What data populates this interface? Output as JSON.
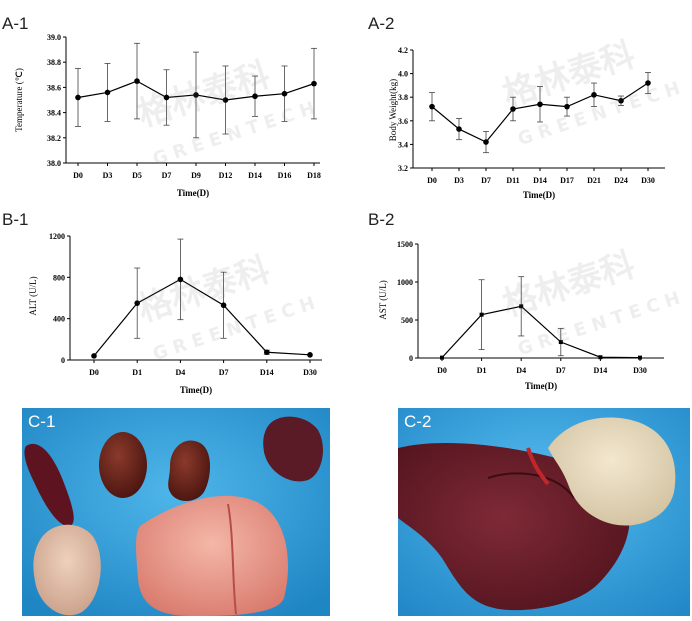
{
  "panels": {
    "a1": "A-1",
    "a2": "A-2",
    "b1": "B-1",
    "b2": "B-2",
    "c1": "C-1",
    "c2": "C-2"
  },
  "watermark": {
    "cn": "格林泰科",
    "en": "GREENTECH"
  },
  "colors": {
    "line": "#000000",
    "photo_bg": "#2e9fd9",
    "liver": "#6a1f2a"
  },
  "chart_data": [
    {
      "id": "A-1",
      "type": "line",
      "x": [
        "D0",
        "D3",
        "D5",
        "D7",
        "D9",
        "D12",
        "D14",
        "D16",
        "D18"
      ],
      "values": [
        38.52,
        38.56,
        38.65,
        38.52,
        38.54,
        38.5,
        38.53,
        38.55,
        38.63
      ],
      "error": [
        0.23,
        0.23,
        0.3,
        0.22,
        0.34,
        0.27,
        0.16,
        0.22,
        0.28
      ],
      "xlabel": "Time(D)",
      "ylabel": "Temperature (℃)",
      "ylim": [
        38.0,
        39.0
      ],
      "yticks": [
        "38.0",
        "38.2",
        "38.4",
        "38.6",
        "38.8",
        "39.0"
      ]
    },
    {
      "id": "A-2",
      "type": "line",
      "x": [
        "D0",
        "D3",
        "D7",
        "D11",
        "D14",
        "D17",
        "D21",
        "D24",
        "D30"
      ],
      "values": [
        3.72,
        3.53,
        3.42,
        3.7,
        3.74,
        3.72,
        3.82,
        3.77,
        3.92
      ],
      "error": [
        0.12,
        0.09,
        0.09,
        0.1,
        0.15,
        0.08,
        0.1,
        0.04,
        0.09
      ],
      "xlabel": "Time(D)",
      "ylabel": "Body Weight(kg)",
      "ylim": [
        3.2,
        4.2
      ],
      "yticks": [
        "3.2",
        "3.4",
        "3.6",
        "3.8",
        "4.0",
        "4.2"
      ]
    },
    {
      "id": "B-1",
      "type": "line",
      "x": [
        "D0",
        "D1",
        "D4",
        "D7",
        "D14",
        "D30"
      ],
      "values": [
        40,
        550,
        780,
        530,
        75,
        50
      ],
      "error": [
        0,
        340,
        390,
        320,
        20,
        0
      ],
      "xlabel": "Time(D)",
      "ylabel": "ALT (U/L)",
      "ylim": [
        0,
        1200
      ],
      "yticks": [
        "0",
        "400",
        "800",
        "1200"
      ]
    },
    {
      "id": "B-2",
      "type": "line",
      "x": [
        "D0",
        "D1",
        "D4",
        "D7",
        "D14",
        "D30"
      ],
      "values": [
        5,
        570,
        680,
        210,
        10,
        5
      ],
      "error": [
        0,
        460,
        390,
        180,
        0,
        0
      ],
      "xlabel": "Time(D)",
      "ylabel": "AST (U/L)",
      "ylim": [
        0,
        1500
      ],
      "yticks": [
        "0",
        "500",
        "1000",
        "1500"
      ]
    }
  ]
}
